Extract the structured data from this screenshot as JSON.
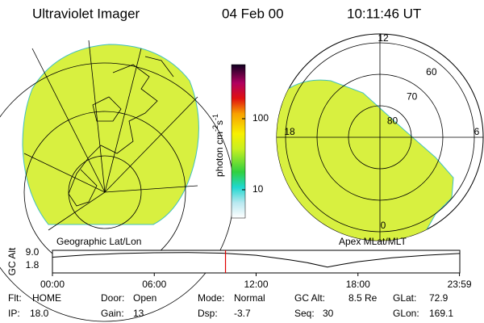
{
  "header": {
    "title": "Ultraviolet Imager",
    "date": "04 Feb 00",
    "time": "10:11:46 UT"
  },
  "left_panel": {
    "label": "Geographic Lat/Lon"
  },
  "colorbar": {
    "label_parts": [
      "photon cm",
      "-2",
      "s",
      "-1"
    ],
    "ticks": [
      10,
      100
    ],
    "log": true
  },
  "right_panel": {
    "label": "Apex MLat/MLT",
    "mlt_labels": [
      12,
      6,
      0,
      18
    ],
    "lat_labels": [
      60,
      70,
      80
    ]
  },
  "timeline": {
    "ylabel": "GC Alt",
    "yticks": [
      {
        "value": 9,
        "label": "9.0"
      },
      1.8
    ],
    "xticks": [
      {
        "value": 0,
        "label": "00:00"
      },
      {
        "value": 6,
        "label": "06:00"
      },
      {
        "value": 12,
        "label": "12:00"
      },
      {
        "value": 18,
        "label": "18:00"
      },
      {
        "value": 23.98,
        "label": "23:59"
      }
    ],
    "hours": [
      0,
      2,
      4,
      6,
      8,
      10,
      12,
      14,
      15,
      16.2,
      17,
      18,
      20,
      22,
      24
    ],
    "gc_alt": [
      6.5,
      7.8,
      8.6,
      9.0,
      9.1,
      8.8,
      7.6,
      5.0,
      3.5,
      1.0,
      2.4,
      4.0,
      6.2,
      7.6,
      8.6
    ],
    "current_hour": 10.196,
    "marker_color": "#e00000"
  },
  "status": [
    [
      {
        "label": "Flt:",
        "value": "HOME"
      },
      {
        "label": "Door:",
        "value": "Open"
      },
      {
        "label": "Mode:",
        "value": "Normal"
      },
      {
        "label": "GC Alt:",
        "value": "8.5 Re"
      },
      {
        "label": "GLat:",
        "value": "72.9"
      }
    ],
    [
      {
        "label": "IP:",
        "value": "18.0"
      },
      {
        "label": "Gain:",
        "value": "13"
      },
      {
        "label": "Dsp:",
        "value": "-3.7"
      },
      {
        "label": "Seq:",
        "value": "30"
      },
      {
        "label": "GLon:",
        "value": "169.1"
      }
    ]
  ]
}
